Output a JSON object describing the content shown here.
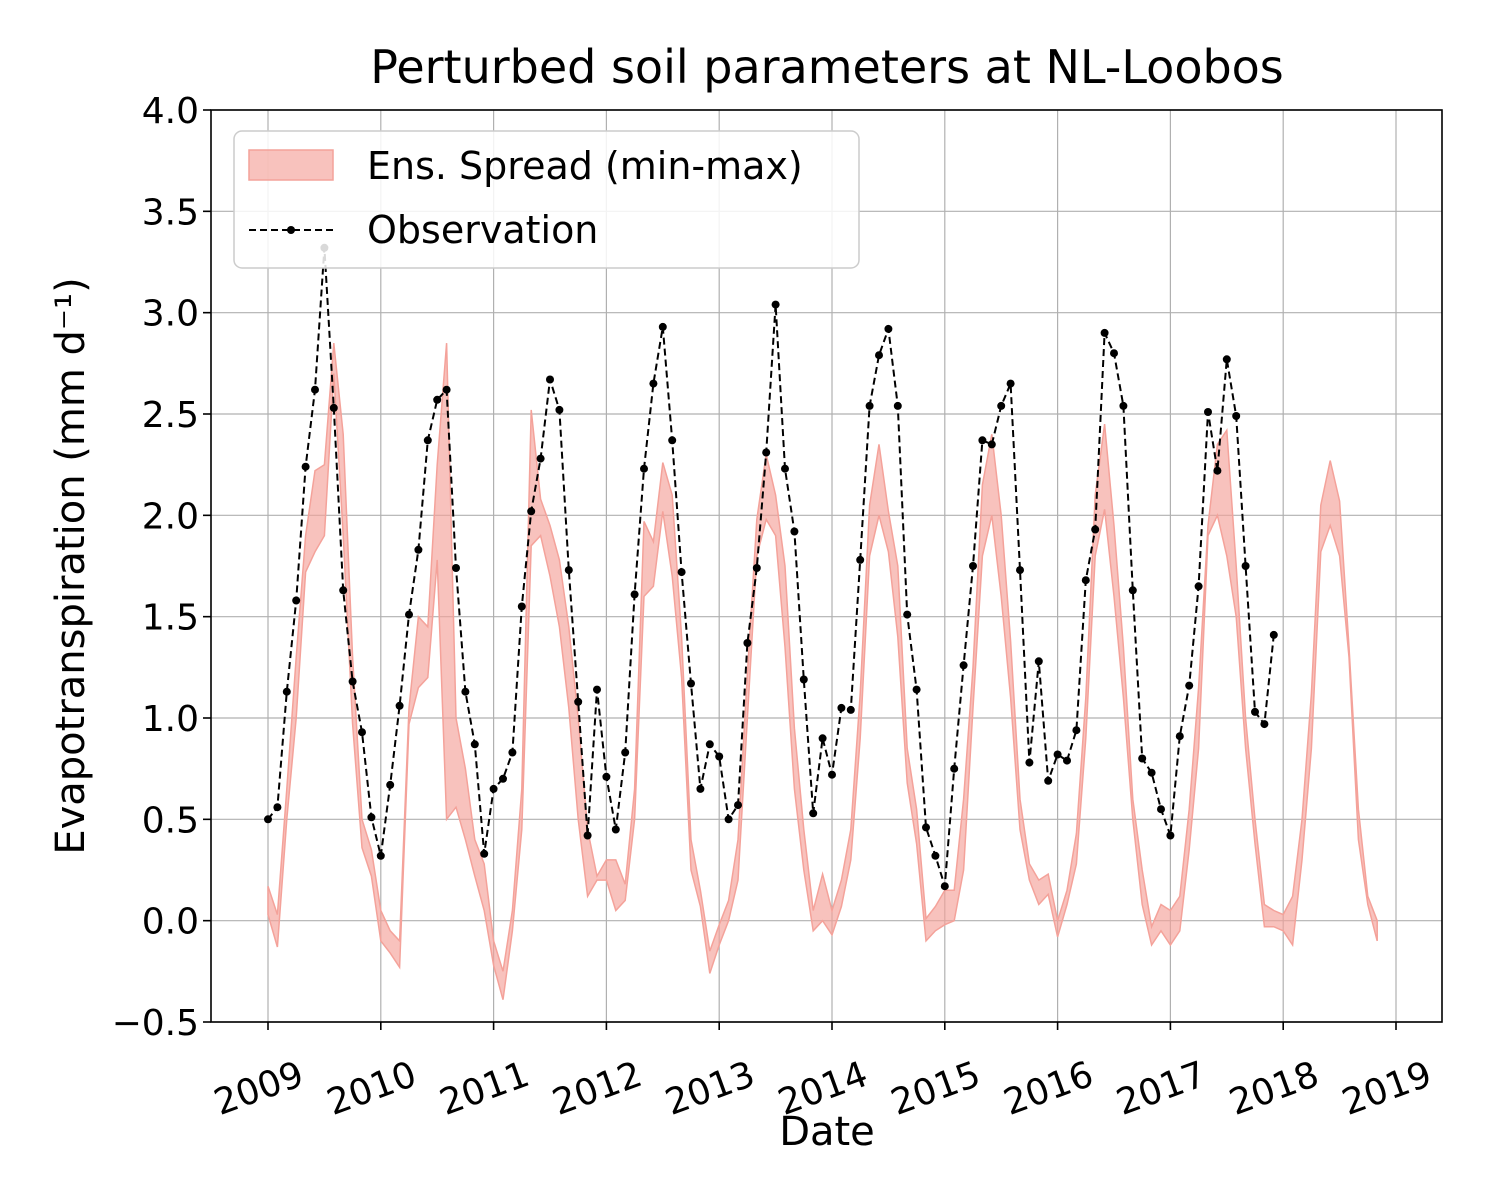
{
  "chart_data": {
    "type": "line",
    "title": "Perturbed soil parameters at NL-Loobos",
    "xlabel": "Date",
    "ylabel": "Evapotranspiration  (mm d⁻¹)",
    "xlim": [
      "2009-01",
      "2019-01"
    ],
    "ylim": [
      -0.5,
      4.0
    ],
    "yticks": [
      -0.5,
      0.0,
      0.5,
      1.0,
      1.5,
      2.0,
      2.5,
      3.0,
      3.5,
      4.0
    ],
    "ytick_labels": [
      "−0.5",
      "0.0",
      "0.5",
      "1.0",
      "1.5",
      "2.0",
      "2.5",
      "3.0",
      "3.5",
      "4.0"
    ],
    "xtick_labels": [
      "2009",
      "2010",
      "2011",
      "2012",
      "2013",
      "2014",
      "2015",
      "2016",
      "2017",
      "2018",
      "2019"
    ],
    "grid": true,
    "legend_position": "top-left",
    "colors": {
      "spread": "#f4a29a",
      "observation": "#000000"
    },
    "series": [
      {
        "name": "Ens. Spread (min-max)",
        "kind": "band",
        "x": [
          "2009-01",
          "2009-02",
          "2009-03",
          "2009-04",
          "2009-05",
          "2009-06",
          "2009-07",
          "2009-08",
          "2009-09",
          "2009-10",
          "2009-11",
          "2009-12",
          "2010-01",
          "2010-02",
          "2010-03",
          "2010-04",
          "2010-05",
          "2010-06",
          "2010-07",
          "2010-08",
          "2010-09",
          "2010-10",
          "2010-11",
          "2010-12",
          "2011-01",
          "2011-02",
          "2011-03",
          "2011-04",
          "2011-05",
          "2011-06",
          "2011-07",
          "2011-08",
          "2011-09",
          "2011-10",
          "2011-11",
          "2011-12",
          "2012-01",
          "2012-02",
          "2012-03",
          "2012-04",
          "2012-05",
          "2012-06",
          "2012-07",
          "2012-08",
          "2012-09",
          "2012-10",
          "2012-11",
          "2012-12",
          "2013-01",
          "2013-02",
          "2013-03",
          "2013-04",
          "2013-05",
          "2013-06",
          "2013-07",
          "2013-08",
          "2013-09",
          "2013-10",
          "2013-11",
          "2013-12",
          "2014-01",
          "2014-02",
          "2014-03",
          "2014-04",
          "2014-05",
          "2014-06",
          "2014-07",
          "2014-08",
          "2014-09",
          "2014-10",
          "2014-11",
          "2014-12",
          "2015-01",
          "2015-02",
          "2015-03",
          "2015-04",
          "2015-05",
          "2015-06",
          "2015-07",
          "2015-08",
          "2015-09",
          "2015-10",
          "2015-11",
          "2015-12",
          "2016-01",
          "2016-02",
          "2016-03",
          "2016-04",
          "2016-05",
          "2016-06",
          "2016-07",
          "2016-08",
          "2016-09",
          "2016-10",
          "2016-11",
          "2016-12",
          "2017-01",
          "2017-02",
          "2017-03",
          "2017-04",
          "2017-05",
          "2017-06",
          "2017-07",
          "2017-08",
          "2017-09",
          "2017-10",
          "2017-11",
          "2017-12",
          "2018-01",
          "2018-02",
          "2018-03",
          "2018-04",
          "2018-05",
          "2018-06",
          "2018-07",
          "2018-08",
          "2018-09",
          "2018-10",
          "2018-11",
          "2018-12"
        ],
        "max": [
          0.17,
          0.03,
          0.65,
          1.3,
          1.9,
          2.22,
          2.25,
          2.85,
          2.4,
          1.3,
          0.5,
          0.35,
          0.05,
          -0.05,
          -0.1,
          1.05,
          1.5,
          1.45,
          2.25,
          2.85,
          1.0,
          0.75,
          0.4,
          0.28,
          -0.1,
          -0.25,
          0.05,
          0.65,
          2.52,
          2.08,
          1.95,
          1.78,
          1.45,
          1.0,
          0.45,
          0.22,
          0.3,
          0.3,
          0.18,
          0.65,
          1.97,
          1.87,
          2.26,
          2.1,
          1.4,
          0.4,
          0.15,
          -0.15,
          -0.02,
          0.1,
          0.4,
          1.22,
          1.98,
          2.3,
          2.1,
          1.75,
          0.95,
          0.45,
          0.05,
          0.23,
          0.05,
          0.2,
          0.45,
          1.12,
          2.05,
          2.35,
          2.02,
          1.75,
          0.85,
          0.55,
          0.01,
          0.07,
          0.15,
          0.15,
          0.6,
          1.25,
          2.15,
          2.4,
          2.0,
          1.38,
          0.6,
          0.28,
          0.2,
          0.23,
          0.0,
          0.15,
          0.43,
          1.1,
          2.1,
          2.45,
          1.95,
          1.35,
          0.6,
          0.25,
          -0.03,
          0.08,
          0.05,
          0.12,
          0.55,
          1.15,
          1.95,
          2.35,
          2.42,
          1.75,
          1.0,
          0.5,
          0.08,
          0.05,
          0.03,
          0.12,
          0.5,
          1.12,
          2.05,
          2.27,
          2.07,
          1.35,
          0.55,
          0.12,
          0.0,
          null
        ],
        "min": [
          0.03,
          -0.13,
          0.5,
          1.0,
          1.72,
          1.82,
          1.9,
          2.7,
          1.9,
          0.97,
          0.36,
          0.22,
          -0.1,
          -0.16,
          -0.23,
          0.97,
          1.15,
          1.2,
          1.78,
          0.5,
          0.56,
          0.4,
          0.22,
          0.05,
          -0.22,
          -0.39,
          -0.05,
          0.45,
          1.85,
          1.9,
          1.7,
          1.45,
          1.05,
          0.5,
          0.12,
          0.2,
          0.2,
          0.05,
          0.1,
          0.5,
          1.6,
          1.65,
          2.02,
          1.7,
          1.2,
          0.25,
          0.07,
          -0.26,
          -0.12,
          0.0,
          0.2,
          1.0,
          1.8,
          1.98,
          1.9,
          1.35,
          0.65,
          0.25,
          -0.05,
          0.0,
          -0.07,
          0.07,
          0.3,
          0.9,
          1.8,
          2.0,
          1.82,
          1.4,
          0.68,
          0.38,
          -0.1,
          -0.05,
          -0.02,
          0.0,
          0.25,
          1.05,
          1.8,
          2.0,
          1.6,
          1.1,
          0.45,
          0.2,
          0.08,
          0.13,
          -0.08,
          0.08,
          0.28,
          0.9,
          1.8,
          2.03,
          1.6,
          1.1,
          0.5,
          0.08,
          -0.12,
          -0.05,
          -0.12,
          -0.05,
          0.35,
          0.85,
          1.9,
          2.0,
          1.8,
          1.5,
          0.85,
          0.38,
          -0.03,
          -0.03,
          -0.05,
          -0.12,
          0.3,
          0.85,
          1.82,
          1.95,
          1.8,
          1.3,
          0.4,
          0.08,
          -0.1,
          null
        ]
      },
      {
        "name": "Observation",
        "kind": "line-marker",
        "x": [
          "2009-01",
          "2009-02",
          "2009-03",
          "2009-04",
          "2009-05",
          "2009-06",
          "2009-07",
          "2009-08",
          "2009-09",
          "2009-10",
          "2009-11",
          "2009-12",
          "2010-01",
          "2010-02",
          "2010-03",
          "2010-04",
          "2010-05",
          "2010-06",
          "2010-07",
          "2010-08",
          "2010-09",
          "2010-10",
          "2010-11",
          "2010-12",
          "2011-01",
          "2011-02",
          "2011-03",
          "2011-04",
          "2011-05",
          "2011-06",
          "2011-07",
          "2011-08",
          "2011-09",
          "2011-10",
          "2011-11",
          "2011-12",
          "2012-01",
          "2012-02",
          "2012-03",
          "2012-04",
          "2012-05",
          "2012-06",
          "2012-07",
          "2012-08",
          "2012-09",
          "2012-10",
          "2012-11",
          "2012-12",
          "2013-01",
          "2013-02",
          "2013-03",
          "2013-04",
          "2013-05",
          "2013-06",
          "2013-07",
          "2013-08",
          "2013-09",
          "2013-10",
          "2013-11",
          "2013-12",
          "2014-01",
          "2014-02",
          "2014-03",
          "2014-04",
          "2014-05",
          "2014-06",
          "2014-07",
          "2014-08",
          "2014-09",
          "2014-10",
          "2014-11",
          "2014-12",
          "2015-01",
          "2015-02",
          "2015-03",
          "2015-04",
          "2015-05",
          "2015-06",
          "2015-07",
          "2015-08",
          "2015-09",
          "2015-10",
          "2015-11",
          "2015-12",
          "2016-01",
          "2016-02",
          "2016-03",
          "2016-04",
          "2016-05",
          "2016-06",
          "2016-07",
          "2016-08",
          "2016-09",
          "2016-10",
          "2016-11",
          "2016-12",
          "2017-01",
          "2017-02",
          "2017-03",
          "2017-04",
          "2017-05",
          "2017-06",
          "2017-07",
          "2017-08",
          "2017-09",
          "2017-10",
          "2017-11",
          "2017-12"
        ],
        "y": [
          0.5,
          0.56,
          1.13,
          1.58,
          2.24,
          2.62,
          3.32,
          2.53,
          1.63,
          1.18,
          0.93,
          0.51,
          0.32,
          0.67,
          1.06,
          1.51,
          1.83,
          2.37,
          2.57,
          2.62,
          1.74,
          1.13,
          0.87,
          0.33,
          0.65,
          0.7,
          0.83,
          1.55,
          2.02,
          2.28,
          2.67,
          2.52,
          1.73,
          1.08,
          0.42,
          1.14,
          0.71,
          0.45,
          0.83,
          1.61,
          2.23,
          2.65,
          2.93,
          2.37,
          1.72,
          1.17,
          0.65,
          0.87,
          0.81,
          0.5,
          0.57,
          1.37,
          1.74,
          2.31,
          3.04,
          2.23,
          1.92,
          1.19,
          0.53,
          0.9,
          0.72,
          1.05,
          1.04,
          1.78,
          2.54,
          2.79,
          2.92,
          2.54,
          1.51,
          1.14,
          0.46,
          0.32,
          0.17,
          0.75,
          1.26,
          1.75,
          2.37,
          2.35,
          2.54,
          2.65,
          1.73,
          0.78,
          1.28,
          0.69,
          0.82,
          0.79,
          0.94,
          1.68,
          1.93,
          2.9,
          2.8,
          2.54,
          1.63,
          0.8,
          0.73,
          0.55,
          0.42,
          0.91,
          1.16,
          1.65,
          2.51,
          2.22,
          2.77,
          2.49,
          1.75,
          1.03,
          0.97,
          1.41
        ]
      }
    ]
  },
  "legend": {
    "spread_label": "Ens. Spread (min-max)",
    "observation_label": "Observation"
  }
}
